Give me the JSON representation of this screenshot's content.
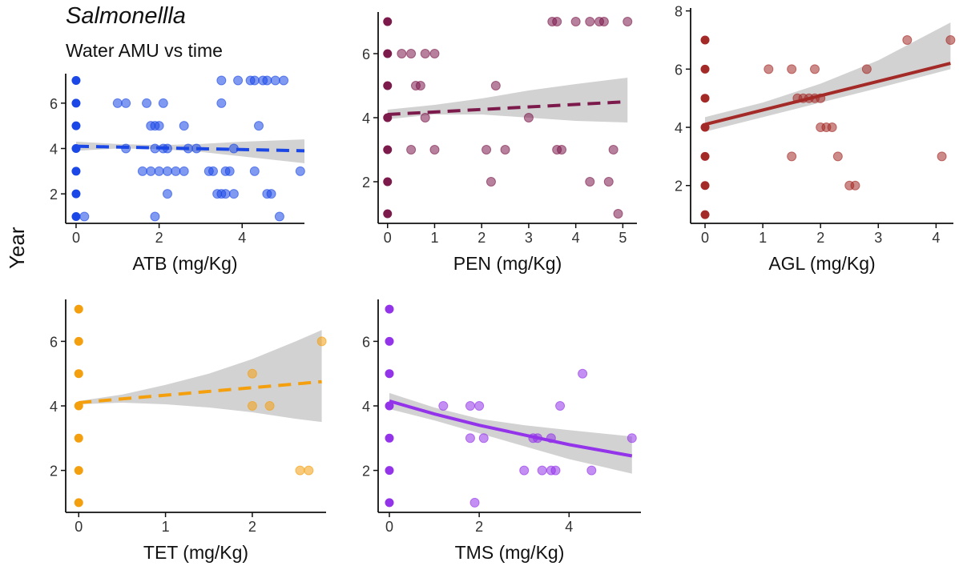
{
  "title": "Salmonellla",
  "subtitle": "Water AMU vs time",
  "ylabel": "Year",
  "chart_data": [
    {
      "type": "scatter",
      "id": "atb",
      "xlabel": "ATB (mg/Kg)",
      "ylabel": "Year",
      "color": "#1a47e5",
      "line_style": "dashed",
      "xlim": [
        -0.25,
        5.5
      ],
      "ylim": [
        0.7,
        7.3
      ],
      "xticks": [
        0,
        2,
        4
      ],
      "yticks": [
        2,
        4,
        6
      ],
      "fit": {
        "x": [
          0,
          5.5
        ],
        "y": [
          4.1,
          3.9
        ]
      },
      "band": {
        "x": [
          0,
          1,
          2,
          3,
          4,
          5.5
        ],
        "lower": [
          3.9,
          4.0,
          3.98,
          3.85,
          3.65,
          3.35
        ],
        "upper": [
          4.3,
          4.2,
          4.15,
          4.2,
          4.3,
          4.4
        ]
      },
      "points": [
        [
          0,
          1
        ],
        [
          0,
          2
        ],
        [
          0,
          3
        ],
        [
          0,
          4
        ],
        [
          0,
          5
        ],
        [
          0,
          6
        ],
        [
          0,
          7
        ],
        [
          0.2,
          1
        ],
        [
          1.0,
          6
        ],
        [
          1.2,
          6
        ],
        [
          1.2,
          4
        ],
        [
          1.7,
          6
        ],
        [
          1.9,
          1
        ],
        [
          2.1,
          6
        ],
        [
          1.8,
          5
        ],
        [
          1.9,
          5
        ],
        [
          2.0,
          5
        ],
        [
          1.9,
          4
        ],
        [
          2.1,
          4
        ],
        [
          2.2,
          4
        ],
        [
          2.0,
          3
        ],
        [
          2.2,
          3
        ],
        [
          2.4,
          3
        ],
        [
          1.6,
          3
        ],
        [
          1.8,
          3
        ],
        [
          2.2,
          2
        ],
        [
          2.6,
          5
        ],
        [
          2.7,
          4
        ],
        [
          2.9,
          4
        ],
        [
          2.6,
          3
        ],
        [
          3.2,
          3
        ],
        [
          3.3,
          3
        ],
        [
          3.4,
          2
        ],
        [
          3.5,
          2
        ],
        [
          3.6,
          3
        ],
        [
          3.7,
          3
        ],
        [
          3.6,
          2
        ],
        [
          3.8,
          2
        ],
        [
          3.8,
          4
        ],
        [
          3.5,
          7
        ],
        [
          3.9,
          7
        ],
        [
          4.2,
          7
        ],
        [
          4.3,
          7
        ],
        [
          4.5,
          7
        ],
        [
          4.6,
          7
        ],
        [
          4.8,
          7
        ],
        [
          5.0,
          7
        ],
        [
          3.5,
          6
        ],
        [
          4.4,
          5
        ],
        [
          4.3,
          3
        ],
        [
          4.6,
          2
        ],
        [
          4.7,
          2
        ],
        [
          4.9,
          1
        ],
        [
          5.4,
          3
        ]
      ]
    },
    {
      "type": "scatter",
      "id": "pen",
      "xlabel": "PEN (mg/Kg)",
      "ylabel": "Year",
      "color": "#7c1a4c",
      "line_style": "dashed",
      "xlim": [
        -0.2,
        5.3
      ],
      "ylim": [
        0.7,
        7.3
      ],
      "xticks": [
        0,
        1,
        2,
        3,
        4,
        5
      ],
      "yticks": [
        2,
        4,
        6
      ],
      "fit": {
        "x": [
          0,
          5.1
        ],
        "y": [
          4.1,
          4.5
        ]
      },
      "band": {
        "x": [
          0,
          1,
          2,
          3,
          4,
          5.1
        ],
        "lower": [
          3.95,
          4.1,
          4.1,
          4.0,
          3.9,
          3.85
        ],
        "upper": [
          4.25,
          4.4,
          4.6,
          4.85,
          5.05,
          5.25
        ]
      },
      "points": [
        [
          0,
          1
        ],
        [
          0,
          2
        ],
        [
          0,
          3
        ],
        [
          0,
          4
        ],
        [
          0,
          5
        ],
        [
          0,
          6
        ],
        [
          0,
          7
        ],
        [
          0.3,
          6
        ],
        [
          0.5,
          6
        ],
        [
          0.8,
          6
        ],
        [
          1.0,
          6
        ],
        [
          0.6,
          5
        ],
        [
          0.7,
          5
        ],
        [
          0.8,
          4
        ],
        [
          0.5,
          3
        ],
        [
          1.0,
          3
        ],
        [
          2.1,
          3
        ],
        [
          2.5,
          3
        ],
        [
          2.2,
          2
        ],
        [
          2.3,
          5
        ],
        [
          3.0,
          4
        ],
        [
          3.5,
          7
        ],
        [
          3.6,
          7
        ],
        [
          4.0,
          7
        ],
        [
          4.3,
          7
        ],
        [
          4.5,
          7
        ],
        [
          4.6,
          7
        ],
        [
          5.1,
          7
        ],
        [
          3.6,
          3
        ],
        [
          3.7,
          3
        ],
        [
          4.3,
          2
        ],
        [
          4.7,
          2
        ],
        [
          4.8,
          3
        ],
        [
          4.9,
          1
        ]
      ]
    },
    {
      "type": "scatter",
      "id": "agl",
      "xlabel": "AGL (mg/Kg)",
      "ylabel": "Year",
      "color": "#a32a27",
      "line_style": "solid",
      "xlim": [
        -0.25,
        4.3
      ],
      "ylim": [
        0.7,
        8.1
      ],
      "xticks": [
        0,
        1,
        2,
        3,
        4
      ],
      "yticks": [
        2,
        4,
        6,
        8
      ],
      "fit": {
        "x": [
          0,
          4.25
        ],
        "y": [
          4.1,
          6.2
        ]
      },
      "band": {
        "x": [
          0,
          1,
          2,
          3,
          4.25
        ],
        "lower": [
          3.85,
          4.35,
          4.85,
          5.35,
          6.0
        ],
        "upper": [
          4.35,
          4.85,
          5.5,
          6.3,
          7.6
        ]
      },
      "points": [
        [
          0,
          1
        ],
        [
          0,
          2
        ],
        [
          0,
          3
        ],
        [
          0,
          4
        ],
        [
          0,
          5
        ],
        [
          0,
          6
        ],
        [
          0,
          7
        ],
        [
          1.1,
          6
        ],
        [
          1.5,
          6
        ],
        [
          1.9,
          6
        ],
        [
          1.5,
          3
        ],
        [
          1.6,
          5
        ],
        [
          1.7,
          5
        ],
        [
          1.8,
          5
        ],
        [
          1.9,
          5
        ],
        [
          2.0,
          5
        ],
        [
          2.0,
          4
        ],
        [
          2.1,
          4
        ],
        [
          2.2,
          4
        ],
        [
          2.3,
          3
        ],
        [
          2.5,
          2
        ],
        [
          2.6,
          2
        ],
        [
          2.8,
          6
        ],
        [
          3.5,
          7
        ],
        [
          4.1,
          3
        ],
        [
          4.25,
          7
        ]
      ]
    },
    {
      "type": "scatter",
      "id": "tet",
      "xlabel": "TET (mg/Kg)",
      "ylabel": "Year",
      "color": "#f49f0e",
      "line_style": "dashed",
      "xlim": [
        -0.15,
        2.85
      ],
      "ylim": [
        0.7,
        7.3
      ],
      "xticks": [
        0,
        1,
        2
      ],
      "yticks": [
        2,
        4,
        6
      ],
      "fit": {
        "x": [
          0,
          2.8
        ],
        "y": [
          4.1,
          4.75
        ]
      },
      "band": {
        "x": [
          0,
          0.5,
          1,
          1.5,
          2,
          2.5,
          2.8
        ],
        "lower": [
          4.05,
          4.1,
          4.05,
          3.95,
          3.8,
          3.6,
          3.5
        ],
        "upper": [
          4.15,
          4.35,
          4.65,
          5.0,
          5.45,
          6.0,
          6.35
        ]
      },
      "points": [
        [
          0,
          1
        ],
        [
          0,
          2
        ],
        [
          0,
          3
        ],
        [
          0,
          4
        ],
        [
          0,
          5
        ],
        [
          0,
          6
        ],
        [
          0,
          7
        ],
        [
          2.0,
          5
        ],
        [
          2.0,
          4
        ],
        [
          2.2,
          4
        ],
        [
          2.55,
          2
        ],
        [
          2.65,
          2
        ],
        [
          2.8,
          6
        ]
      ]
    },
    {
      "type": "scatter",
      "id": "tms",
      "xlabel": "TMS (mg/Kg)",
      "ylabel": "Year",
      "color": "#9333ea",
      "line_style": "solid",
      "xlim": [
        -0.25,
        5.6
      ],
      "ylim": [
        0.7,
        7.3
      ],
      "xticks": [
        0,
        2,
        4
      ],
      "yticks": [
        2,
        4,
        6
      ],
      "fit": {
        "x": [
          0,
          1,
          2,
          3,
          4,
          5.4
        ],
        "y": [
          4.15,
          3.75,
          3.4,
          3.1,
          2.8,
          2.45
        ]
      },
      "band": {
        "x": [
          0,
          1,
          2,
          3,
          4,
          5.4
        ],
        "lower": [
          3.9,
          3.55,
          3.15,
          2.75,
          2.35,
          1.9
        ],
        "upper": [
          4.4,
          3.95,
          3.6,
          3.4,
          3.25,
          3.05
        ]
      },
      "points": [
        [
          0,
          1
        ],
        [
          0,
          2
        ],
        [
          0,
          3
        ],
        [
          0,
          4
        ],
        [
          0,
          5
        ],
        [
          0,
          6
        ],
        [
          0,
          7
        ],
        [
          1.2,
          4
        ],
        [
          1.8,
          4
        ],
        [
          2.0,
          4
        ],
        [
          1.9,
          1
        ],
        [
          1.8,
          3
        ],
        [
          2.1,
          3
        ],
        [
          3.0,
          2
        ],
        [
          3.2,
          3
        ],
        [
          3.3,
          3
        ],
        [
          3.4,
          2
        ],
        [
          3.6,
          3
        ],
        [
          3.6,
          2
        ],
        [
          3.7,
          2
        ],
        [
          3.8,
          4
        ],
        [
          4.3,
          5
        ],
        [
          4.5,
          2
        ],
        [
          5.4,
          3
        ]
      ]
    }
  ]
}
